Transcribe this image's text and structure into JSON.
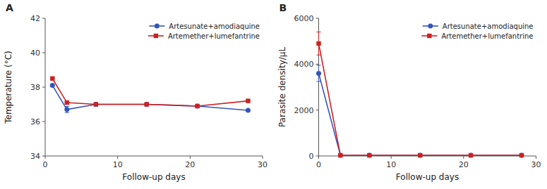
{
  "chart_data": [
    {
      "type": "line",
      "title": "A",
      "xlabel": "Follow-up days",
      "ylabel": "Temperature (°C)",
      "xlim": [
        0,
        30
      ],
      "ylim": [
        34,
        42
      ],
      "xticks": [
        0,
        10,
        20,
        30
      ],
      "yticks": [
        34,
        36,
        38,
        40,
        42
      ],
      "legend": "upper right",
      "x": [
        1,
        3,
        7,
        14,
        21,
        28
      ],
      "series": [
        {
          "name": "Artesunate+amodiaquine",
          "color": "#3355BB",
          "marker": "circle",
          "values": [
            38.1,
            36.7,
            37.0,
            37.0,
            36.9,
            36.65
          ],
          "errors": [
            0.0,
            0.18,
            0.0,
            0.0,
            0.0,
            0.0
          ]
        },
        {
          "name": "Artemether+lumefantrine",
          "color": "#CC2222",
          "marker": "square",
          "values": [
            38.5,
            37.1,
            37.0,
            37.0,
            36.9,
            37.2
          ],
          "errors": [
            0.0,
            0.0,
            0.0,
            0.0,
            0.0,
            0.0
          ]
        }
      ]
    },
    {
      "type": "line",
      "title": "B",
      "xlabel": "Follow-up days",
      "ylabel": "Parasite density/μL",
      "xlim": [
        0,
        30
      ],
      "ylim": [
        0,
        6000
      ],
      "xticks": [
        0,
        10,
        20,
        30
      ],
      "yticks": [
        0,
        2000,
        4000,
        6000
      ],
      "legend": "upper right",
      "x": [
        0,
        3,
        7,
        14,
        21,
        28
      ],
      "series": [
        {
          "name": "Artesunate+amodiaquine",
          "color": "#3355BB",
          "marker": "circle",
          "values": [
            3600,
            30,
            30,
            30,
            30,
            30
          ],
          "errors": [
            350,
            0,
            0,
            0,
            0,
            0
          ]
        },
        {
          "name": "Artemether+lumefantrine",
          "color": "#CC2222",
          "marker": "square",
          "values": [
            4900,
            30,
            30,
            30,
            30,
            30
          ],
          "errors": [
            500,
            0,
            0,
            0,
            0,
            0
          ]
        }
      ]
    }
  ]
}
